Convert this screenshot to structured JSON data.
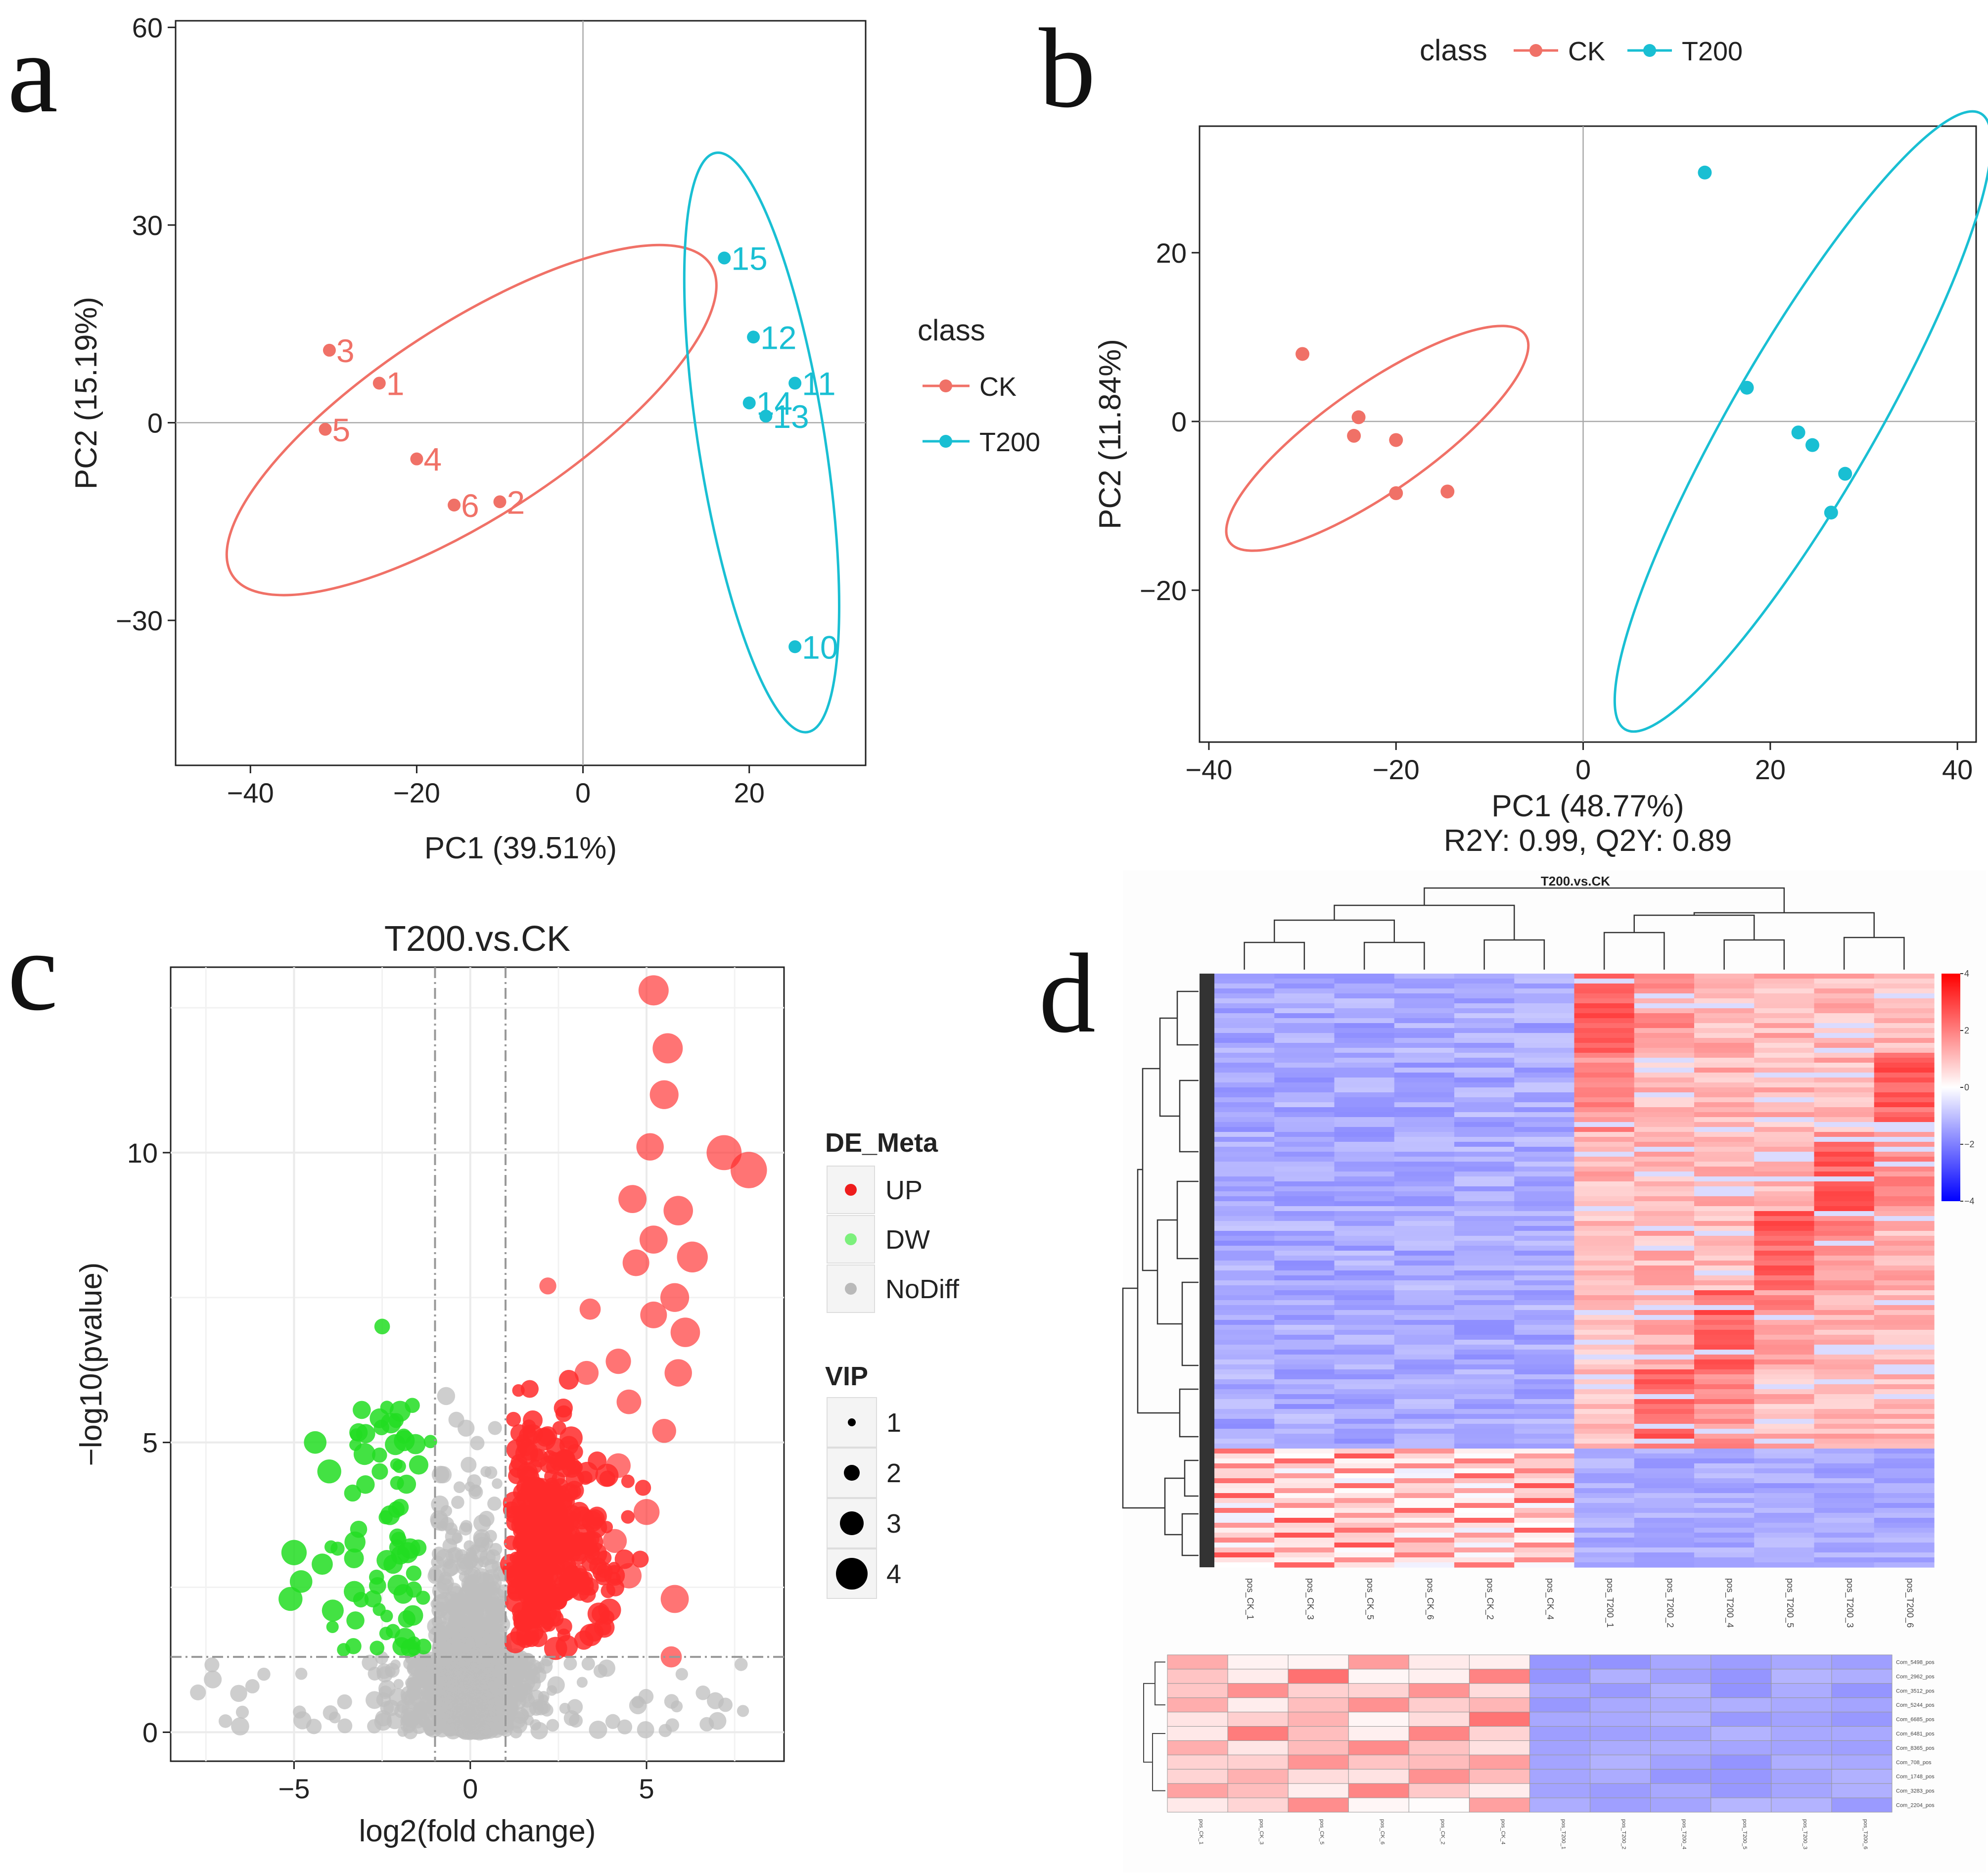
{
  "panels": {
    "a": {
      "letter": "a"
    },
    "b": {
      "letter": "b"
    },
    "c": {
      "letter": "c"
    },
    "d": {
      "letter": "d"
    }
  },
  "chart_data": [
    {
      "id": "a",
      "type": "scatter",
      "title": "",
      "xlabel": "PC1 (39.51%)",
      "ylabel": "PC2 (15.19%)",
      "xlim": [
        -49,
        34
      ],
      "ylim": [
        -52,
        61
      ],
      "xticks": [
        -40,
        -20,
        0,
        20
      ],
      "xtick_labels": [
        "−40",
        "−20",
        "0",
        "20"
      ],
      "yticks": [
        -30,
        0,
        30,
        60
      ],
      "ytick_labels": [
        "−30",
        "0",
        "30",
        "60"
      ],
      "legend": {
        "title": "class",
        "position": "right",
        "entries": [
          {
            "label": "CK",
            "color": "#f07167"
          },
          {
            "label": "T200",
            "color": "#19bfd3"
          }
        ]
      },
      "series": [
        {
          "name": "CK",
          "color": "#f07167",
          "points": [
            {
              "label": "1",
              "x": -24.5,
              "y": 6
            },
            {
              "label": "2",
              "x": -10,
              "y": -12
            },
            {
              "label": "3",
              "x": -30.5,
              "y": 11
            },
            {
              "label": "4",
              "x": -20,
              "y": -5.5
            },
            {
              "label": "5",
              "x": -31,
              "y": -1
            },
            {
              "label": "6",
              "x": -15.5,
              "y": -12.5
            }
          ],
          "ellipse": {
            "cx": -13.4,
            "cy": 0.4,
            "rx": 34.3,
            "ry": 14.6,
            "angle": -33
          }
        },
        {
          "name": "T200",
          "color": "#19bfd3",
          "points": [
            {
              "label": "10",
              "x": 25.5,
              "y": -34
            },
            {
              "label": "11",
              "x": 25.5,
              "y": 6
            },
            {
              "label": "12",
              "x": 20.5,
              "y": 13
            },
            {
              "label": "13",
              "x": 22,
              "y": 1
            },
            {
              "label": "14",
              "x": 20,
              "y": 3
            },
            {
              "label": "15",
              "x": 17,
              "y": 25
            }
          ],
          "ellipse": {
            "cx": 21.5,
            "cy": -3,
            "rx": 7.6,
            "ry": 44.5,
            "angle": -9
          }
        }
      ]
    },
    {
      "id": "b",
      "type": "scatter",
      "title": "",
      "xlabel": "PC1 (48.77%)",
      "subtitle": "R2Y: 0.99, Q2Y: 0.89",
      "ylabel": "PC2 (11.84%)",
      "xlim": [
        -41,
        42
      ],
      "ylim": [
        -38,
        35
      ],
      "xticks": [
        -40,
        -20,
        0,
        20,
        40
      ],
      "xtick_labels": [
        "−40",
        "−20",
        "0",
        "20",
        "40"
      ],
      "yticks": [
        -20,
        0,
        20
      ],
      "ytick_labels": [
        "−20",
        "0",
        "20"
      ],
      "legend": {
        "title": "class",
        "position": "top",
        "entries": [
          {
            "label": "CK",
            "color": "#f07167"
          },
          {
            "label": "T200",
            "color": "#19bfd3"
          }
        ]
      },
      "series": [
        {
          "name": "CK",
          "color": "#f07167",
          "points": [
            {
              "x": -30,
              "y": 8
            },
            {
              "x": -24,
              "y": 0.5
            },
            {
              "x": -24.5,
              "y": -1.7
            },
            {
              "x": -20,
              "y": -2.2
            },
            {
              "x": -20,
              "y": -8.5
            },
            {
              "x": -14.5,
              "y": -8.3
            }
          ],
          "ellipse": {
            "cx": -22,
            "cy": -2,
            "rx": 19.3,
            "ry": 6.3,
            "angle": -35
          }
        },
        {
          "name": "T200",
          "color": "#19bfd3",
          "points": [
            {
              "x": 13,
              "y": 29.5
            },
            {
              "x": 17.5,
              "y": 4
            },
            {
              "x": 23,
              "y": -1.3
            },
            {
              "x": 24.5,
              "y": -2.8
            },
            {
              "x": 28,
              "y": -6.2
            },
            {
              "x": 26.5,
              "y": -10.8
            }
          ],
          "ellipse": {
            "cx": 23.5,
            "cy": 0,
            "rx": 38,
            "ry": 8.5,
            "angle": -60
          }
        }
      ]
    },
    {
      "id": "c",
      "type": "scatter",
      "title": "T200.vs.CK",
      "xlabel": "log2(fold change)",
      "ylabel": "−log10(pvalue)",
      "xlim": [
        -8.5,
        8.9
      ],
      "ylim": [
        -0.5,
        13.2
      ],
      "xticks": [
        -5,
        0,
        5
      ],
      "xtick_labels": [
        "−5",
        "0",
        "5"
      ],
      "yticks": [
        0,
        5,
        10
      ],
      "ytick_labels": [
        "0",
        "5",
        "10"
      ],
      "thresholds": {
        "x": [
          -1,
          1
        ],
        "y": 1.3
      },
      "legend_de": {
        "title": "DE_Meta",
        "entries": [
          {
            "label": "UP",
            "color": "#ee1c1c"
          },
          {
            "label": "DW",
            "color": "#7cf07c"
          },
          {
            "label": "NoDiff",
            "color": "#b9b9b9"
          }
        ]
      },
      "legend_vip": {
        "title": "VIP",
        "entries": [
          "1",
          "2",
          "3",
          "4"
        ]
      },
      "colors": {
        "UP": "#ff2a2a",
        "DW": "#22dd22",
        "NoDiff": "#bdbdbd"
      },
      "up_large_points": [
        {
          "x": 5.2,
          "y": 12.8,
          "vip": 3.5
        },
        {
          "x": 5.6,
          "y": 11.8,
          "vip": 3.5
        },
        {
          "x": 5.5,
          "y": 11.0,
          "vip": 3.3
        },
        {
          "x": 5.1,
          "y": 10.1,
          "vip": 3.1
        },
        {
          "x": 7.2,
          "y": 10.0,
          "vip": 4.2
        },
        {
          "x": 7.9,
          "y": 9.7,
          "vip": 4.4
        },
        {
          "x": 4.6,
          "y": 9.2,
          "vip": 3.2
        },
        {
          "x": 5.9,
          "y": 9.0,
          "vip": 3.4
        },
        {
          "x": 5.2,
          "y": 8.5,
          "vip": 3.2
        },
        {
          "x": 4.7,
          "y": 8.1,
          "vip": 3.0
        },
        {
          "x": 6.3,
          "y": 8.2,
          "vip": 3.6
        },
        {
          "x": 5.8,
          "y": 7.5,
          "vip": 3.3
        },
        {
          "x": 5.2,
          "y": 7.2,
          "vip": 3.0
        },
        {
          "x": 6.1,
          "y": 6.9,
          "vip": 3.4
        },
        {
          "x": 5.9,
          "y": 6.2,
          "vip": 3.1
        },
        {
          "x": 5.5,
          "y": 5.2,
          "vip": 2.6
        },
        {
          "x": 4.2,
          "y": 6.4,
          "vip": 2.8
        },
        {
          "x": 4.5,
          "y": 5.7,
          "vip": 2.7
        },
        {
          "x": 5.8,
          "y": 2.3,
          "vip": 3.2
        },
        {
          "x": 5.7,
          "y": 1.3,
          "vip": 2.2
        },
        {
          "x": 3.3,
          "y": 6.2,
          "vip": 2.6
        },
        {
          "x": 2.2,
          "y": 7.7,
          "vip": 1.6
        },
        {
          "x": 3.4,
          "y": 7.3,
          "vip": 2.2
        },
        {
          "x": 4.2,
          "y": 4.6,
          "vip": 2.7
        },
        {
          "x": 5.0,
          "y": 3.8,
          "vip": 2.9
        },
        {
          "x": 4.1,
          "y": 3.3,
          "vip": 2.6
        },
        {
          "x": 4.5,
          "y": 2.7,
          "vip": 2.8
        }
      ],
      "dw_large_points": [
        {
          "x": -4.4,
          "y": 5.0,
          "vip": 2.4
        },
        {
          "x": -3.0,
          "y": 4.8,
          "vip": 2.3
        },
        {
          "x": -4.0,
          "y": 4.5,
          "vip": 2.6
        },
        {
          "x": -5.0,
          "y": 3.1,
          "vip": 2.8
        },
        {
          "x": -4.8,
          "y": 2.6,
          "vip": 2.4
        },
        {
          "x": -4.2,
          "y": 2.9,
          "vip": 2.2
        },
        {
          "x": -5.1,
          "y": 2.3,
          "vip": 2.6
        },
        {
          "x": -3.9,
          "y": 2.1,
          "vip": 2.3
        },
        {
          "x": -2.5,
          "y": 7.0,
          "vip": 1.4
        },
        {
          "x": -3.3,
          "y": 3.0,
          "vip": 2.0
        }
      ]
    },
    {
      "id": "d",
      "type": "heatmap",
      "title": "T200.vs.CK",
      "columns": [
        "pos_CK_1",
        "pos_CK_3",
        "pos_CK_5",
        "pos_CK_6",
        "pos_CK_2",
        "pos_CK_4",
        "pos_T200_1",
        "pos_T200_2",
        "pos_T200_4",
        "pos_T200_5",
        "pos_T200_3",
        "pos_T200_6"
      ],
      "colorbar": {
        "ticks": [
          4,
          2,
          0,
          -2,
          -4
        ],
        "tick_labels": [
          "4",
          "2",
          "0",
          "−2",
          "−4"
        ],
        "colors": [
          "#ff0000",
          "#ffffff",
          "#0000ff"
        ]
      },
      "main_row_count": 120,
      "sub_rows": [
        "Com_5498_pos",
        "Com_2962_pos",
        "Com_3512_pos",
        "Com_5244_pos",
        "Com_6685_pos",
        "Com_6481_pos",
        "Com_8365_pos",
        "Com_708_pos",
        "Com_1748_pos",
        "Com_3283_pos",
        "Com_2204_pos"
      ]
    }
  ]
}
